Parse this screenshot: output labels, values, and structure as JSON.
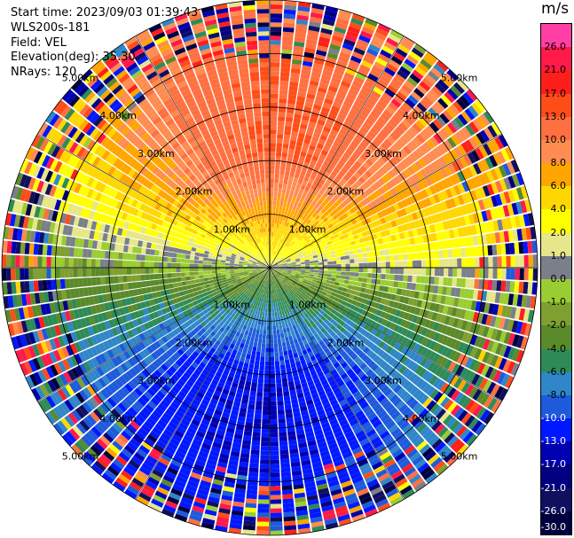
{
  "header": {
    "start_time": "Start time: 2023/09/03 01:39:43",
    "station": "WLS200s-181",
    "field": "Field: VEL",
    "elevation": "Elevation(deg): 35.30",
    "nrays": "NRays: 120"
  },
  "colorbar": {
    "unit": "m/s",
    "levels": [
      {
        "label": "26.0",
        "color": "#ff3fa3"
      },
      {
        "label": "21.0",
        "color": "#ff1a4a"
      },
      {
        "label": "17.0",
        "color": "#ff1f1a"
      },
      {
        "label": "13.0",
        "color": "#ff4d18"
      },
      {
        "label": "10.0",
        "color": "#ff7040"
      },
      {
        "label": "8.0",
        "color": "#ff8c50"
      },
      {
        "label": "6.0",
        "color": "#ffa500"
      },
      {
        "label": "4.0",
        "color": "#ffd700"
      },
      {
        "label": "2.0",
        "color": "#ffff00"
      },
      {
        "label": "1.0",
        "color": "#e6e68a"
      },
      {
        "label": "0.0",
        "color": "#7a7f8a"
      },
      {
        "label": "-1.0",
        "color": "#9acd32"
      },
      {
        "label": "-2.0",
        "color": "#7fa030"
      },
      {
        "label": "-4.0",
        "color": "#5a8a2a"
      },
      {
        "label": "-6.0",
        "color": "#2e8b57"
      },
      {
        "label": "-8.0",
        "color": "#2f86c8"
      },
      {
        "label": "-10.0",
        "color": "#1e5adc"
      },
      {
        "label": "-13.0",
        "color": "#0018ff"
      },
      {
        "label": "-17.0",
        "color": "#0000b0"
      },
      {
        "label": "-21.0",
        "color": "#000080"
      },
      {
        "label": "-26.0",
        "color": "#101060"
      },
      {
        "label": "-30.0",
        "color": "#000040"
      }
    ]
  },
  "chart_data": {
    "type": "heatmap",
    "projection": "polar PPI",
    "field": "VEL",
    "unit": "m/s",
    "n_rays": 120,
    "range_rings_km": [
      1.0,
      2.0,
      3.0,
      4.0,
      5.0
    ],
    "range_ring_labels": [
      "1.00km",
      "2.00km",
      "3.00km",
      "4.00km",
      "5.00km"
    ],
    "velocity_pattern_description_values": {
      "north_sector_peak_ms": 13.0,
      "south_sector_peak_ms": -13.0
    },
    "crosshair": true,
    "spokes_every_deg": 30
  }
}
